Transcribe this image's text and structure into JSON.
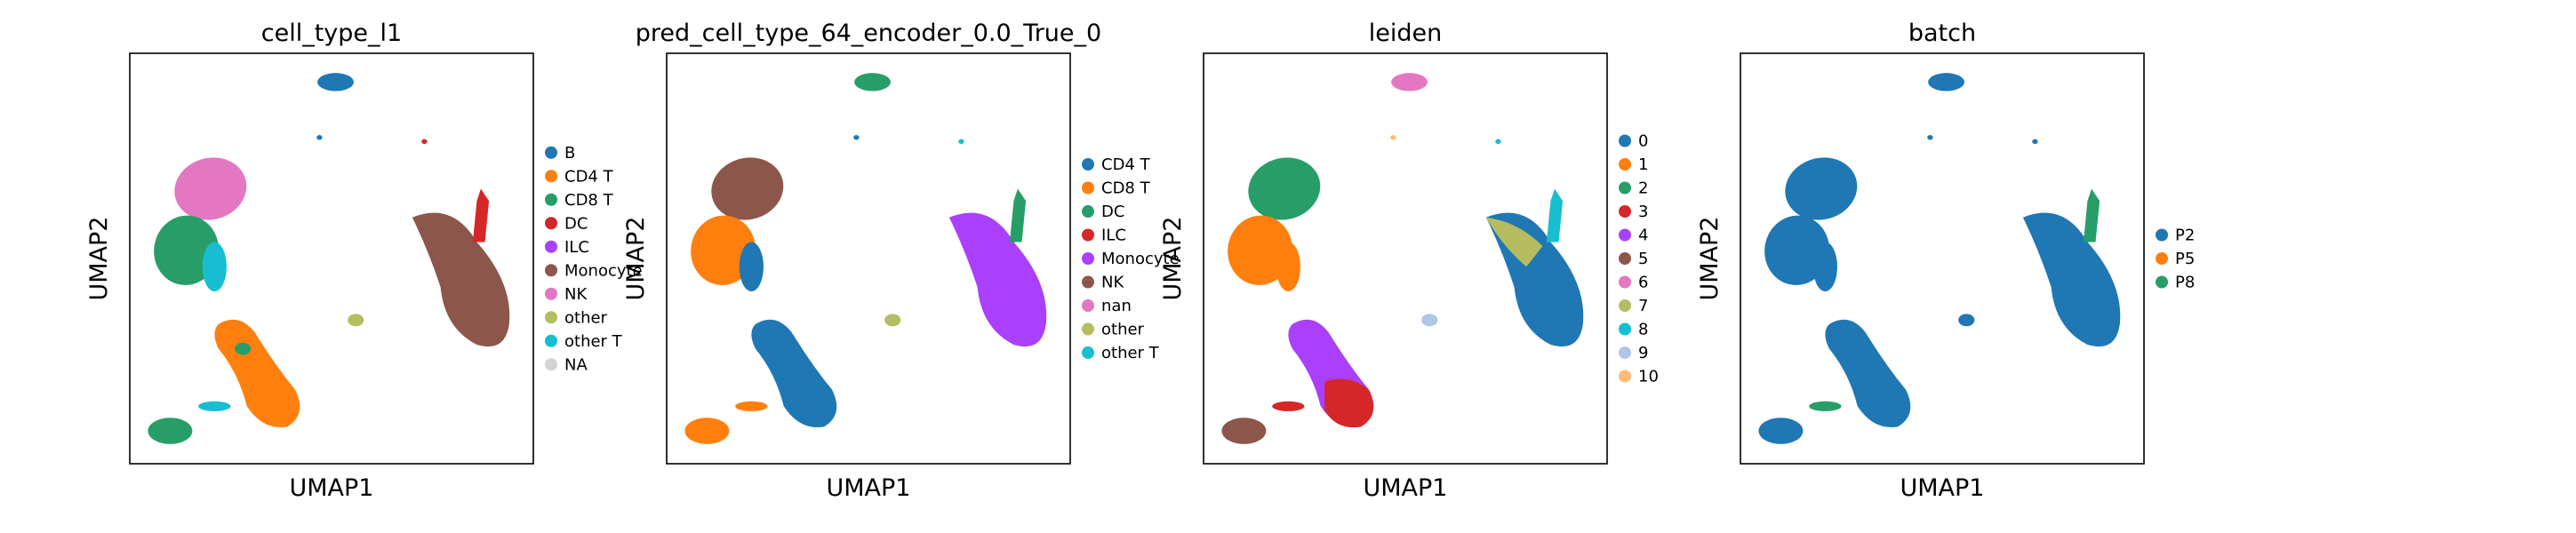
{
  "chart_data": [
    {
      "type": "scatter",
      "title": "cell_type_l1",
      "xlabel": "UMAP1",
      "ylabel": "UMAP2",
      "legend": "right",
      "ticks": false,
      "grid": false,
      "legend_entries": [
        {
          "label": "B",
          "color": "#1f77b4"
        },
        {
          "label": "CD4 T",
          "color": "#ff7f0e"
        },
        {
          "label": "CD8 T",
          "color": "#279e68"
        },
        {
          "label": "DC",
          "color": "#d62728"
        },
        {
          "label": "ILC",
          "color": "#aa40fc"
        },
        {
          "label": "Monocyte",
          "color": "#8c564b"
        },
        {
          "label": "NK",
          "color": "#e377c2"
        },
        {
          "label": "other",
          "color": "#b5bd61"
        },
        {
          "label": "other T",
          "color": "#17becf"
        },
        {
          "label": "NA",
          "color": "#d3d3d3"
        }
      ],
      "clusters": [
        {
          "key": "top",
          "category": "B"
        },
        {
          "key": "tiny1",
          "category": "B"
        },
        {
          "key": "tinyr",
          "category": "DC"
        },
        {
          "key": "nk",
          "category": "NK"
        },
        {
          "key": "cd8",
          "category": "CD8 T"
        },
        {
          "key": "otherT",
          "category": "other T"
        },
        {
          "key": "mono",
          "category": "Monocyte"
        },
        {
          "key": "monotip",
          "category": "DC"
        },
        {
          "key": "ilc",
          "category": "other"
        },
        {
          "key": "cd4",
          "category": "CD4 T"
        },
        {
          "key": "cd8b",
          "category": "CD8 T"
        },
        {
          "key": "botT",
          "category": "other T"
        },
        {
          "key": "bot",
          "category": "CD8 T"
        }
      ]
    },
    {
      "type": "scatter",
      "title": "pred_cell_type_64_encoder_0.0_True_0",
      "xlabel": "UMAP1",
      "ylabel": "UMAP2",
      "legend": "right",
      "ticks": false,
      "grid": false,
      "legend_entries": [
        {
          "label": "CD4 T",
          "color": "#1f77b4"
        },
        {
          "label": "CD8 T",
          "color": "#ff7f0e"
        },
        {
          "label": "DC",
          "color": "#279e68"
        },
        {
          "label": "ILC",
          "color": "#d62728"
        },
        {
          "label": "Monocyte",
          "color": "#aa40fc"
        },
        {
          "label": "NK",
          "color": "#8c564b"
        },
        {
          "label": "nan",
          "color": "#e377c2"
        },
        {
          "label": "other",
          "color": "#b5bd61"
        },
        {
          "label": "other T",
          "color": "#17becf"
        }
      ],
      "clusters": [
        {
          "key": "top",
          "category": "DC"
        },
        {
          "key": "tiny1",
          "category": "CD4 T"
        },
        {
          "key": "tinyr",
          "category": "other T"
        },
        {
          "key": "nk",
          "category": "NK"
        },
        {
          "key": "cd8",
          "category": "CD8 T"
        },
        {
          "key": "otherT",
          "category": "CD4 T"
        },
        {
          "key": "mono",
          "category": "Monocyte"
        },
        {
          "key": "monotip",
          "category": "DC"
        },
        {
          "key": "ilc",
          "category": "other"
        },
        {
          "key": "cd4",
          "category": "CD4 T"
        },
        {
          "key": "cd8b",
          "category": "CD4 T"
        },
        {
          "key": "botT",
          "category": "CD8 T"
        },
        {
          "key": "bot",
          "category": "CD8 T"
        }
      ]
    },
    {
      "type": "scatter",
      "title": "leiden",
      "xlabel": "UMAP1",
      "ylabel": "UMAP2",
      "legend": "right",
      "ticks": false,
      "grid": false,
      "legend_entries": [
        {
          "label": "0",
          "color": "#1f77b4"
        },
        {
          "label": "1",
          "color": "#ff7f0e"
        },
        {
          "label": "2",
          "color": "#279e68"
        },
        {
          "label": "3",
          "color": "#d62728"
        },
        {
          "label": "4",
          "color": "#aa40fc"
        },
        {
          "label": "5",
          "color": "#8c564b"
        },
        {
          "label": "6",
          "color": "#e377c2"
        },
        {
          "label": "7",
          "color": "#b5bd61"
        },
        {
          "label": "8",
          "color": "#17becf"
        },
        {
          "label": "9",
          "color": "#aec7e8"
        },
        {
          "label": "10",
          "color": "#ffbb78"
        }
      ],
      "clusters": [
        {
          "key": "top",
          "category": "6"
        },
        {
          "key": "tiny1",
          "category": "10"
        },
        {
          "key": "tinyr",
          "category": "8"
        },
        {
          "key": "nk",
          "category": "2"
        },
        {
          "key": "cd8",
          "category": "1"
        },
        {
          "key": "otherT",
          "category": "1"
        },
        {
          "key": "mono",
          "category": "0"
        },
        {
          "key": "monotip",
          "category": "8"
        },
        {
          "key": "monoflag",
          "category": "7"
        },
        {
          "key": "ilc",
          "category": "9"
        },
        {
          "key": "cd4",
          "category": "4"
        },
        {
          "key": "cd4low",
          "category": "3"
        },
        {
          "key": "botT",
          "category": "3"
        },
        {
          "key": "bot",
          "category": "5"
        }
      ]
    },
    {
      "type": "scatter",
      "title": "batch",
      "xlabel": "UMAP1",
      "ylabel": "UMAP2",
      "legend": "right",
      "ticks": false,
      "grid": false,
      "legend_entries": [
        {
          "label": "P2",
          "color": "#1f77b4"
        },
        {
          "label": "P5",
          "color": "#ff7f0e"
        },
        {
          "label": "P8",
          "color": "#279e68"
        }
      ],
      "clusters": [
        {
          "key": "top",
          "category": "P2"
        },
        {
          "key": "tiny1",
          "category": "P2"
        },
        {
          "key": "tinyr",
          "category": "P2"
        },
        {
          "key": "nk",
          "category": "P2"
        },
        {
          "key": "cd8",
          "category": "P2"
        },
        {
          "key": "otherT",
          "category": "P2"
        },
        {
          "key": "mono",
          "category": "P2"
        },
        {
          "key": "monotip",
          "category": "P8"
        },
        {
          "key": "ilc",
          "category": "P2"
        },
        {
          "key": "cd4",
          "category": "P2"
        },
        {
          "key": "cd8b",
          "category": "P2"
        },
        {
          "key": "botT",
          "category": "P8"
        },
        {
          "key": "bot",
          "category": "P2"
        }
      ]
    }
  ]
}
